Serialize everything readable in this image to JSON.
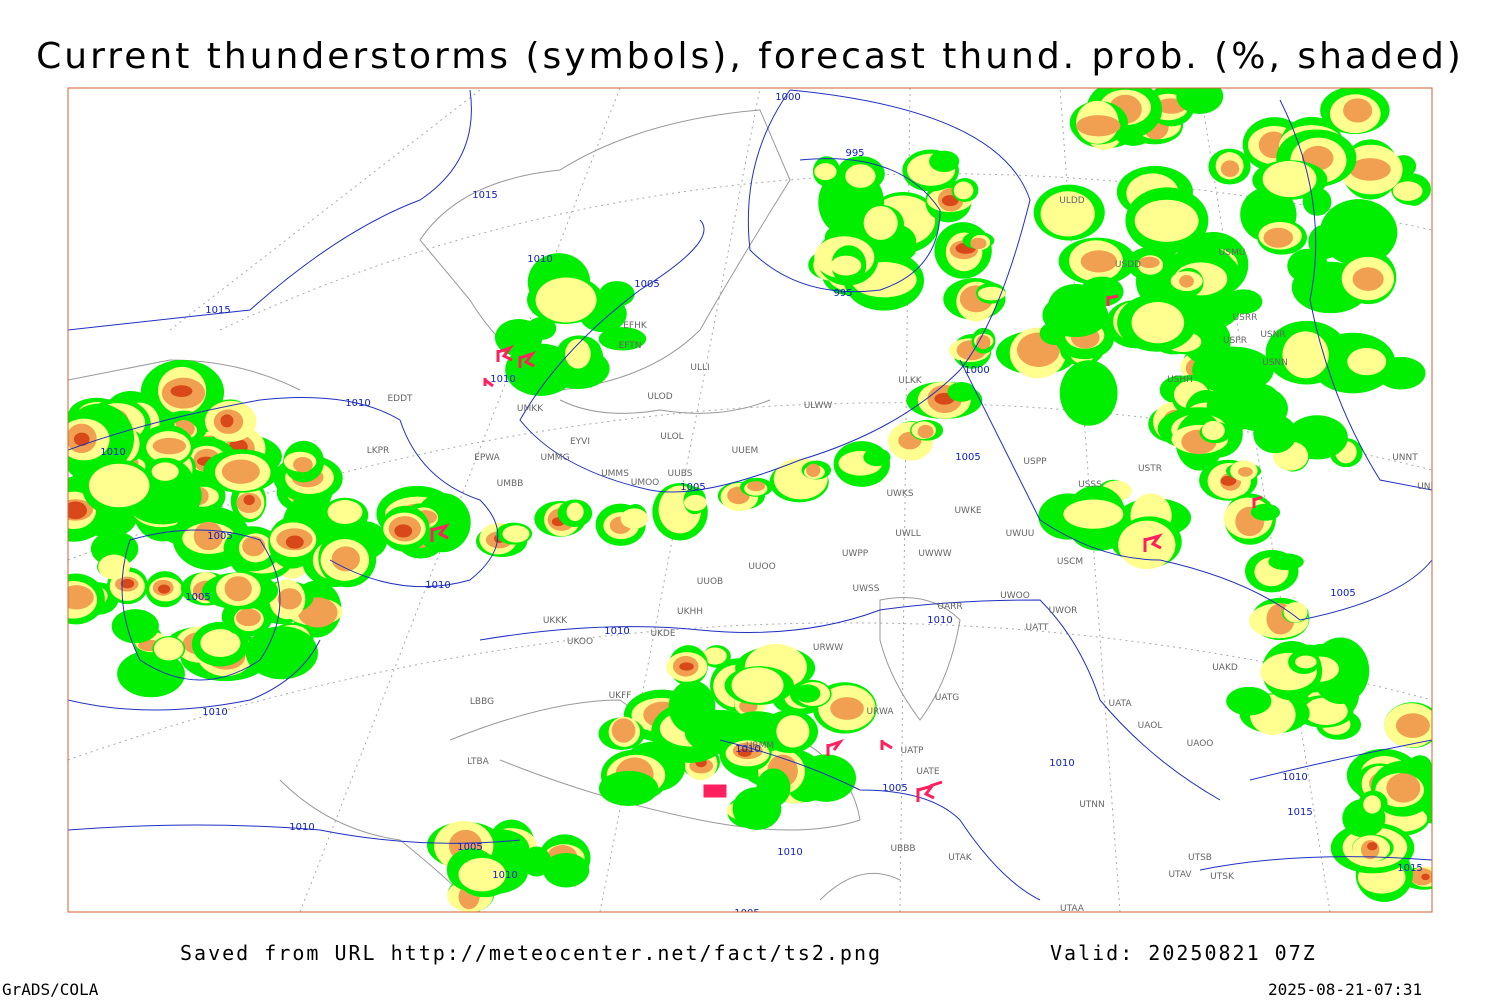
{
  "header": {
    "title": "Current thunderstorms (symbols), forecast thund. prob. (%, shaded)"
  },
  "footer": {
    "source": "Saved from URL http://meteocenter.net/fact/ts2.png",
    "valid": "Valid: 20250821 07Z",
    "software": "GrADS/COLA",
    "timestamp": "2025-08-21-07:31"
  },
  "isobar_labels": [
    1000,
    995,
    1015,
    1010,
    1005,
    995,
    1015,
    1010,
    1010,
    1000,
    1010,
    1005,
    1005,
    1005,
    1010,
    1005,
    1010,
    1010,
    1005,
    1010,
    1010,
    1010,
    1010,
    1005,
    1015,
    1010,
    1005,
    1010,
    1010,
    1015,
    1005
  ],
  "stations": [
    "EFHK",
    "EFTN",
    "ULLI",
    "ULOD",
    "ULOL",
    "UMKK",
    "EYVI",
    "EPWA",
    "UMMG",
    "UMMS",
    "UMOO",
    "UUBS",
    "UMBB",
    "UUEM",
    "ULKK",
    "ULWW",
    "USPP",
    "USSS",
    "UWKE",
    "UWKS",
    "UWLL",
    "UWWW",
    "UWUU",
    "USCM",
    "UWPP",
    "UUOO",
    "UUOB",
    "UWSS",
    "UARR",
    "UWOO",
    "UWOR",
    "UATT",
    "UKHH",
    "UKKK",
    "UKOO",
    "UKDE",
    "URWW",
    "UAKD",
    "UATG",
    "URWA",
    "UATA",
    "UAOL",
    "UAOO",
    "UATP",
    "UATE",
    "URMM",
    "LTBA",
    "UTNN",
    "UBBB",
    "UTAK",
    "UTSB",
    "UTAV",
    "UTSK",
    "UTAA",
    "ULDD",
    "USDD",
    "USMU",
    "USRR",
    "USNR",
    "USPR",
    "USNN",
    "USHH",
    "UNNT",
    "UNBB",
    "EDDT",
    "LKPR",
    "LBBG",
    "UKFF",
    "USTR"
  ]
}
